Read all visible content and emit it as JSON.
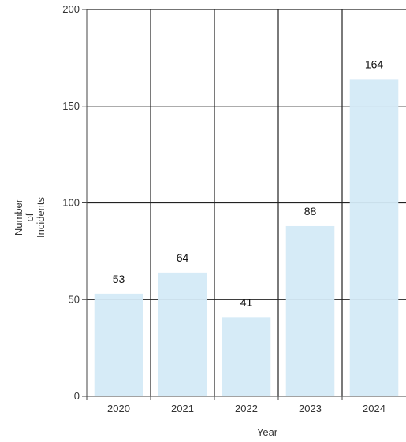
{
  "chart_data": {
    "type": "bar",
    "categories": [
      "2020",
      "2021",
      "2022",
      "2023",
      "2024"
    ],
    "values": [
      53,
      64,
      41,
      88,
      164
    ],
    "data_labels": [
      "53",
      "64",
      "41",
      "88",
      "164"
    ],
    "xlabel": "Year",
    "ylabel_lines": [
      "Number",
      "of",
      "Incidents"
    ],
    "ylim": [
      0,
      200
    ],
    "yticks": [
      0,
      50,
      100,
      150,
      200
    ],
    "ytick_labels": [
      "0",
      "50",
      "100",
      "150",
      "200"
    ],
    "grid": true,
    "bar_color": "#d4eaf7"
  }
}
